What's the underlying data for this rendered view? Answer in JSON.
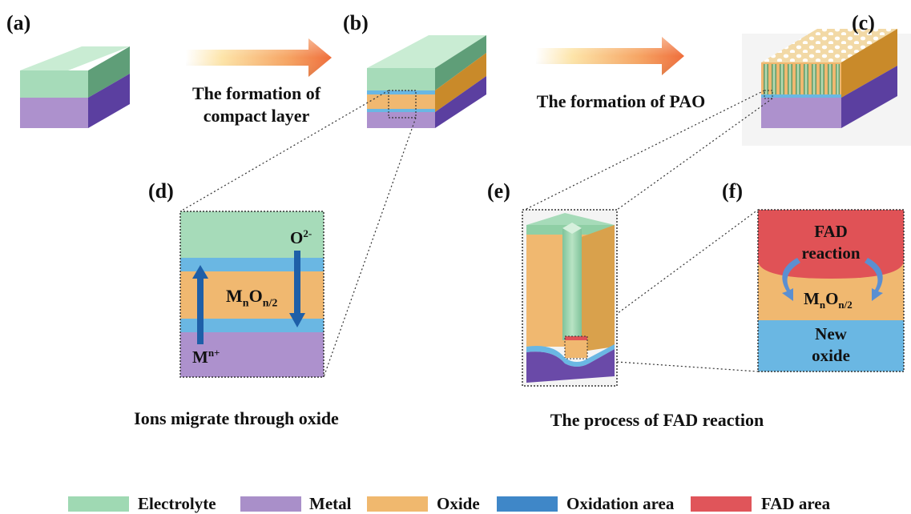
{
  "panels": {
    "a": "(a)",
    "b": "(b)",
    "c": "(c)",
    "d": "(d)",
    "e": "(e)",
    "f": "(f)"
  },
  "arrows": {
    "ab_caption_line1": "The formation of",
    "ab_caption_line2": "compact layer",
    "bc_caption": "The formation of  PAO"
  },
  "panel_d": {
    "ion_top": "O",
    "ion_top_charge": "2-",
    "ion_bottom": "M",
    "ion_bottom_charge": "n+",
    "oxide_base": "M",
    "oxide_sub1": "n",
    "oxide_mid": "O",
    "oxide_sub2": "n/2",
    "caption": "Ions migrate through oxide"
  },
  "panel_f": {
    "fad_line1": "FAD",
    "fad_line2": "reaction",
    "oxide_base": "M",
    "oxide_sub1": "n",
    "oxide_mid": "O",
    "oxide_sub2": "n/2",
    "new_line1": "New",
    "new_line2": "oxide"
  },
  "panel_e": {
    "caption": "The process of  FAD reaction"
  },
  "legend": [
    {
      "label": "Electrolyte",
      "color": "#9fd9b3"
    },
    {
      "label": "Metal",
      "color": "#a98fc9"
    },
    {
      "label": "Oxide",
      "color": "#f0b86e"
    },
    {
      "label": "Oxidation area",
      "color": "#3f87c8"
    },
    {
      "label": "FAD area",
      "color": "#e0555a"
    }
  ],
  "colors": {
    "electrolyte": "#a6dbb9",
    "electrolyte_dark": "#5f9e78",
    "metal": "#ad91cd",
    "metal_dark": "#5b3fa0",
    "oxide": "#f0b870",
    "oxide_dark": "#c98a2a",
    "oxidation": "#6ab7e3",
    "arrow_blue": "#1e5fa8",
    "fad": "#e05256"
  }
}
